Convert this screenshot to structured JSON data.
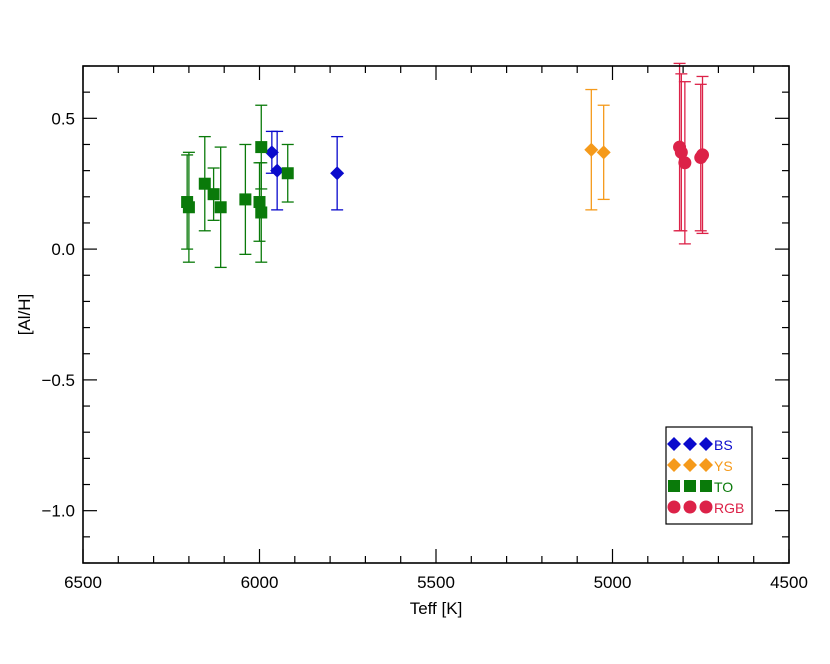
{
  "chart_data": {
    "type": "scatter",
    "title": "",
    "xlabel": "Teff [K]",
    "ylabel": "[Al/H]",
    "xlim": [
      6500,
      4500
    ],
    "ylim": [
      -1.2,
      0.7
    ],
    "x_ticks": [
      6500,
      6000,
      5500,
      5000,
      4500
    ],
    "x_tick_labels": [
      "6500",
      "6000",
      "5500",
      "5000",
      "4500"
    ],
    "y_ticks": [
      0.5,
      0.0,
      -0.5,
      -1.0
    ],
    "y_tick_labels": [
      "0.5",
      "0.0",
      "−0.5",
      "−1.0"
    ],
    "x_minor_step": 100,
    "y_minor_step": 0.1,
    "grid": false,
    "legend_position": "bottom-right",
    "series": [
      {
        "name": "BS",
        "marker": "diamond",
        "color": "#0a0acc",
        "points": [
          {
            "x": 5965,
            "y": 0.37,
            "err": 0.08
          },
          {
            "x": 5950,
            "y": 0.3,
            "err": 0.15
          },
          {
            "x": 5780,
            "y": 0.29,
            "err": 0.14
          }
        ]
      },
      {
        "name": "YS",
        "marker": "diamond",
        "color": "#f59a1b",
        "points": [
          {
            "x": 5060,
            "y": 0.38,
            "err": 0.23
          },
          {
            "x": 5025,
            "y": 0.37,
            "err": 0.18
          }
        ]
      },
      {
        "name": "TO",
        "marker": "square",
        "color": "#0a7a0a",
        "points": [
          {
            "x": 6205,
            "y": 0.18,
            "err": 0.18
          },
          {
            "x": 6200,
            "y": 0.16,
            "err": 0.21
          },
          {
            "x": 6155,
            "y": 0.25,
            "err": 0.18
          },
          {
            "x": 6130,
            "y": 0.21,
            "err": 0.1
          },
          {
            "x": 6110,
            "y": 0.16,
            "err": 0.23
          },
          {
            "x": 6040,
            "y": 0.19,
            "err": 0.21
          },
          {
            "x": 5995,
            "y": 0.39,
            "err": 0.16
          },
          {
            "x": 6000,
            "y": 0.18,
            "err": 0.15
          },
          {
            "x": 5995,
            "y": 0.14,
            "err": 0.19
          },
          {
            "x": 5920,
            "y": 0.29,
            "err": 0.11
          }
        ]
      },
      {
        "name": "RGB",
        "marker": "circle",
        "color": "#dc2248",
        "points": [
          {
            "x": 4810,
            "y": 0.39,
            "err": 0.32
          },
          {
            "x": 4805,
            "y": 0.37,
            "err": 0.3
          },
          {
            "x": 4795,
            "y": 0.33,
            "err": 0.31
          },
          {
            "x": 4750,
            "y": 0.35,
            "err": 0.28
          },
          {
            "x": 4745,
            "y": 0.36,
            "err": 0.3
          }
        ]
      }
    ]
  }
}
